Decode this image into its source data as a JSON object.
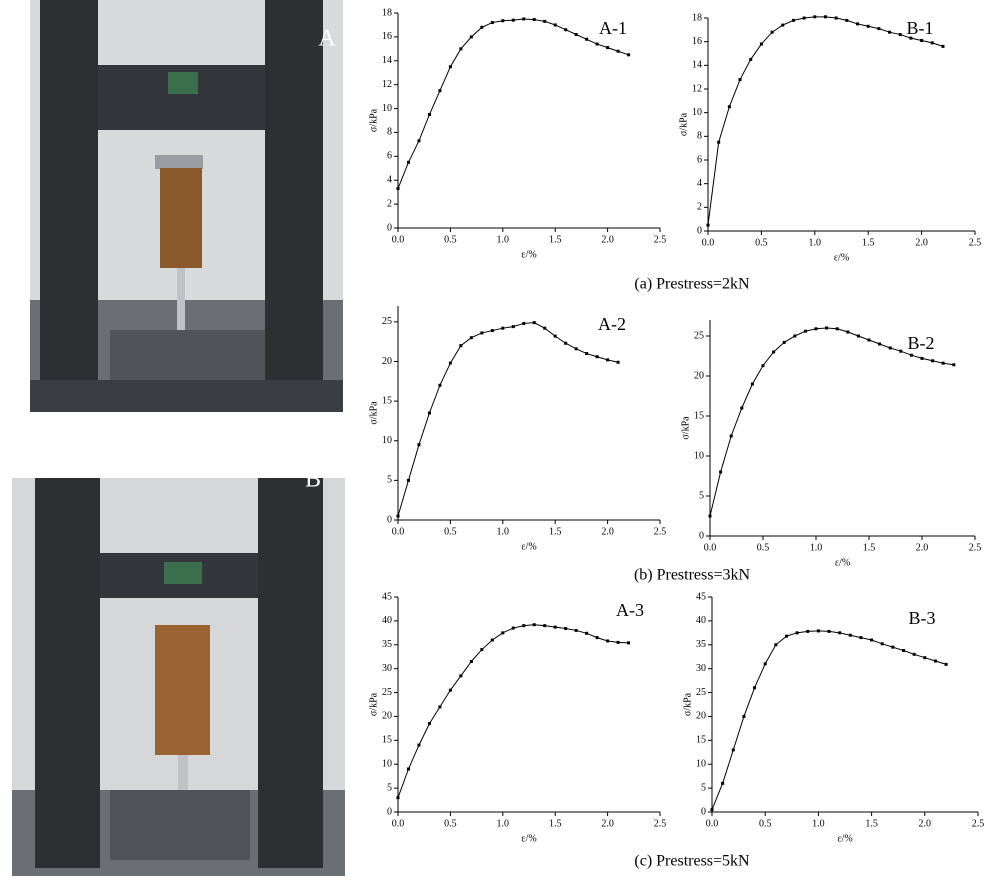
{
  "photos": [
    {
      "label": "A"
    },
    {
      "label": "B"
    }
  ],
  "captions": [
    "(a)  Prestress=2kN",
    "(b)  Prestress=3kN",
    "(c)  Prestress=5kN"
  ],
  "chart_data": [
    {
      "type": "line",
      "title": "A-1",
      "x_label": "ε/%",
      "y_label": "σ/kPa",
      "color": "#000000",
      "x": [
        0,
        0.1,
        0.2,
        0.3,
        0.4,
        0.5,
        0.6,
        0.7,
        0.8,
        0.9,
        1.0,
        1.1,
        1.2,
        1.3,
        1.4,
        1.5,
        1.6,
        1.7,
        1.8,
        1.9,
        2.0,
        2.1,
        2.2
      ],
      "values": [
        3.3,
        5.5,
        7.3,
        9.5,
        11.5,
        13.5,
        15.0,
        16.0,
        16.8,
        17.2,
        17.35,
        17.4,
        17.5,
        17.45,
        17.3,
        17.0,
        16.6,
        16.2,
        15.8,
        15.4,
        15.1,
        14.8,
        14.5
      ],
      "xlim": [
        0,
        2.5
      ],
      "xticks": [
        {
          "value": 0,
          "label": "0.0"
        },
        0.5,
        {
          "value": 1,
          "label": "1.0"
        },
        1.5,
        {
          "value": 2,
          "label": "2.0"
        },
        2.5
      ],
      "ylim": [
        0,
        18
      ],
      "yticks": [
        0,
        2,
        4,
        6,
        8,
        10,
        12,
        14,
        16,
        18
      ]
    },
    {
      "type": "line",
      "title": "B-1",
      "x_label": "ε/%",
      "y_label": "σ/kPa",
      "color": "#000000",
      "x": [
        0,
        0.1,
        0.2,
        0.3,
        0.4,
        0.5,
        0.6,
        0.7,
        0.8,
        0.9,
        1.0,
        1.1,
        1.2,
        1.3,
        1.4,
        1.5,
        1.6,
        1.7,
        1.8,
        1.9,
        2.0,
        2.1,
        2.2
      ],
      "values": [
        0.5,
        7.5,
        10.5,
        12.8,
        14.5,
        15.8,
        16.8,
        17.4,
        17.8,
        18.0,
        18.1,
        18.1,
        18.0,
        17.8,
        17.5,
        17.3,
        17.1,
        16.8,
        16.6,
        16.3,
        16.1,
        15.9,
        15.6
      ],
      "xlim": [
        0,
        2.5
      ],
      "xticks": [
        {
          "value": 0,
          "label": "0.0"
        },
        0.5,
        {
          "value": 1,
          "label": "1.0"
        },
        1.5,
        {
          "value": 2,
          "label": "2.0"
        },
        2.5
      ],
      "ylim": [
        0,
        18
      ],
      "yticks": [
        0,
        2,
        4,
        6,
        8,
        10,
        12,
        14,
        16,
        18
      ]
    },
    {
      "type": "line",
      "title": "A-2",
      "x_label": "ε/%",
      "y_label": "σ/kPa",
      "color": "#000000",
      "x": [
        0,
        0.1,
        0.2,
        0.3,
        0.4,
        0.5,
        0.6,
        0.7,
        0.8,
        0.9,
        1.0,
        1.1,
        1.2,
        1.3,
        1.4,
        1.5,
        1.6,
        1.7,
        1.8,
        1.9,
        2.0,
        2.1
      ],
      "values": [
        0.5,
        5,
        9.5,
        13.5,
        17,
        19.8,
        22,
        23,
        23.6,
        23.9,
        24.2,
        24.4,
        24.8,
        24.9,
        24.2,
        23.2,
        22.3,
        21.6,
        21.0,
        20.6,
        20.2,
        19.9
      ],
      "xlim": [
        0,
        2.5
      ],
      "xticks": [
        {
          "value": 0,
          "label": "0.0"
        },
        0.5,
        {
          "value": 1,
          "label": "1.0"
        },
        1.5,
        {
          "value": 2,
          "label": "2.0"
        },
        2.5
      ],
      "ylim": [
        0,
        27
      ],
      "yticks": [
        0,
        5,
        10,
        15,
        20,
        25
      ]
    },
    {
      "type": "line",
      "title": "B-2",
      "x_label": "ε/%",
      "y_label": "σ/kPa",
      "color": "#000000",
      "x": [
        0,
        0.1,
        0.2,
        0.3,
        0.4,
        0.5,
        0.6,
        0.7,
        0.8,
        0.9,
        1.0,
        1.1,
        1.2,
        1.3,
        1.4,
        1.5,
        1.6,
        1.7,
        1.8,
        1.9,
        2.0,
        2.1,
        2.2,
        2.3
      ],
      "values": [
        2.5,
        8,
        12.5,
        16,
        19,
        21.3,
        23,
        24.2,
        25,
        25.6,
        25.9,
        26,
        25.9,
        25.5,
        25,
        24.5,
        24,
        23.5,
        23.1,
        22.6,
        22.2,
        21.9,
        21.6,
        21.4
      ],
      "xlim": [
        0,
        2.5
      ],
      "xticks": [
        {
          "value": 0,
          "label": "0.0"
        },
        0.5,
        {
          "value": 1,
          "label": "1.0"
        },
        1.5,
        {
          "value": 2,
          "label": "2.0"
        },
        2.5
      ],
      "ylim": [
        0,
        27
      ],
      "yticks": [
        0,
        5,
        10,
        15,
        20,
        25
      ]
    },
    {
      "type": "line",
      "title": "A-3",
      "x_label": "ε/%",
      "y_label": "σ/kPa",
      "color": "#000000",
      "x": [
        0,
        0.1,
        0.2,
        0.3,
        0.4,
        0.5,
        0.6,
        0.7,
        0.8,
        0.9,
        1.0,
        1.1,
        1.2,
        1.3,
        1.4,
        1.5,
        1.6,
        1.7,
        1.8,
        1.9,
        2.0,
        2.1,
        2.2
      ],
      "values": [
        3,
        9,
        14,
        18.5,
        22,
        25.5,
        28.5,
        31.5,
        34,
        36,
        37.5,
        38.5,
        39,
        39.2,
        39,
        38.7,
        38.4,
        38,
        37.4,
        36.5,
        35.8,
        35.5,
        35.4
      ],
      "xlim": [
        0,
        2.5
      ],
      "xticks": [
        {
          "value": 0,
          "label": "0.0"
        },
        0.5,
        {
          "value": 1,
          "label": "1.0"
        },
        1.5,
        {
          "value": 2,
          "label": "2.0"
        },
        2.5
      ],
      "ylim": [
        0,
        45
      ],
      "yticks": [
        0,
        5,
        10,
        15,
        20,
        25,
        30,
        35,
        40,
        45
      ]
    },
    {
      "type": "line",
      "title": "B-3",
      "x_label": "ε/%",
      "y_label": "σ/kPa",
      "color": "#000000",
      "x": [
        0,
        0.1,
        0.2,
        0.3,
        0.4,
        0.5,
        0.6,
        0.7,
        0.8,
        0.9,
        1.0,
        1.1,
        1.2,
        1.3,
        1.4,
        1.5,
        1.6,
        1.7,
        1.8,
        1.9,
        2.0,
        2.1,
        2.2
      ],
      "values": [
        0.5,
        6,
        13,
        20,
        26,
        31,
        35,
        36.8,
        37.5,
        37.8,
        37.9,
        37.8,
        37.5,
        37,
        36.5,
        36,
        35.2,
        34.5,
        33.8,
        33,
        32.3,
        31.6,
        30.9
      ],
      "xlim": [
        0,
        2.5
      ],
      "xticks": [
        {
          "value": 0,
          "label": "0.0"
        },
        0.5,
        {
          "value": 1,
          "label": "1.0"
        },
        1.5,
        {
          "value": 2,
          "label": "2.0"
        },
        2.5
      ],
      "ylim": [
        0,
        45
      ],
      "yticks": [
        0,
        5,
        10,
        15,
        20,
        25,
        30,
        35,
        40,
        45
      ]
    }
  ]
}
